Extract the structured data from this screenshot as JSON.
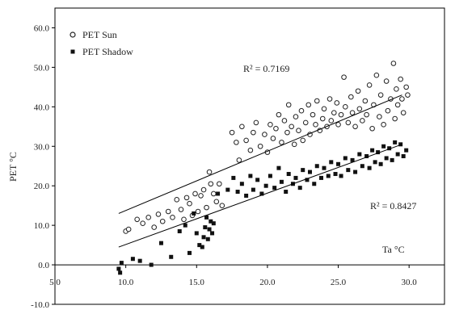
{
  "chart_data": {
    "type": "scatter",
    "title": "",
    "ylabel": "PET   °C",
    "xlabel": "Ta  °C",
    "xlim": [
      5,
      32.5
    ],
    "ylim": [
      -10,
      65
    ],
    "x_ticks": [
      5,
      10,
      15,
      20,
      25,
      30
    ],
    "x_tick_labels": [
      "5.0",
      "10.0",
      "15.0",
      "20.0",
      "25.0",
      "30.0"
    ],
    "y_ticks": [
      -10,
      0,
      10,
      20,
      30,
      40,
      50,
      60
    ],
    "y_tick_labels": [
      "-10.0",
      "0.0",
      "10.0",
      "20.0",
      "30.0",
      "40.0",
      "50.0",
      "60.0"
    ],
    "legend_position": "top-left",
    "grid": false,
    "series": [
      {
        "name": "PET Sun",
        "marker": "open-circle",
        "color": "#222222",
        "r2_label": "R² = 0.7169",
        "regression": {
          "x0": 9.5,
          "y0": 13.0,
          "x1": 29.5,
          "y1": 43.0
        },
        "points": [
          [
            10.0,
            8.5
          ],
          [
            10.2,
            9.0
          ],
          [
            10.8,
            11.5
          ],
          [
            11.2,
            10.5
          ],
          [
            11.6,
            12.0
          ],
          [
            12.0,
            9.5
          ],
          [
            12.3,
            12.8
          ],
          [
            12.6,
            11.0
          ],
          [
            13.0,
            13.5
          ],
          [
            13.3,
            12.0
          ],
          [
            13.6,
            16.5
          ],
          [
            13.9,
            14.0
          ],
          [
            14.1,
            11.5
          ],
          [
            14.3,
            17.0
          ],
          [
            14.5,
            15.5
          ],
          [
            14.7,
            12.5
          ],
          [
            14.9,
            18.0
          ],
          [
            15.1,
            13.5
          ],
          [
            15.3,
            17.5
          ],
          [
            15.5,
            19.0
          ],
          [
            15.7,
            14.5
          ],
          [
            15.9,
            23.5
          ],
          [
            16.0,
            20.5
          ],
          [
            16.2,
            18.0
          ],
          [
            16.4,
            16.0
          ],
          [
            16.6,
            20.5
          ],
          [
            16.8,
            15.0
          ],
          [
            17.5,
            33.5
          ],
          [
            17.8,
            31.0
          ],
          [
            18.0,
            26.5
          ],
          [
            18.2,
            35.0
          ],
          [
            18.5,
            31.5
          ],
          [
            18.8,
            29.0
          ],
          [
            19.0,
            33.5
          ],
          [
            19.2,
            36.0
          ],
          [
            19.5,
            30.0
          ],
          [
            19.8,
            33.0
          ],
          [
            20.0,
            28.5
          ],
          [
            20.2,
            35.5
          ],
          [
            20.4,
            32.0
          ],
          [
            20.6,
            34.5
          ],
          [
            20.8,
            38.0
          ],
          [
            21.0,
            31.0
          ],
          [
            21.2,
            36.5
          ],
          [
            21.4,
            33.5
          ],
          [
            21.5,
            40.5
          ],
          [
            21.7,
            35.0
          ],
          [
            21.9,
            30.5
          ],
          [
            22.0,
            37.5
          ],
          [
            22.2,
            34.0
          ],
          [
            22.4,
            39.0
          ],
          [
            22.5,
            31.5
          ],
          [
            22.7,
            36.0
          ],
          [
            22.9,
            40.5
          ],
          [
            23.0,
            33.0
          ],
          [
            23.2,
            38.0
          ],
          [
            23.4,
            35.5
          ],
          [
            23.5,
            41.5
          ],
          [
            23.7,
            34.0
          ],
          [
            23.9,
            37.0
          ],
          [
            24.0,
            39.5
          ],
          [
            24.2,
            35.0
          ],
          [
            24.4,
            42.0
          ],
          [
            24.5,
            36.5
          ],
          [
            24.7,
            38.5
          ],
          [
            24.9,
            41.0
          ],
          [
            25.0,
            35.5
          ],
          [
            25.2,
            38.0
          ],
          [
            25.4,
            47.5
          ],
          [
            25.5,
            40.0
          ],
          [
            25.7,
            36.0
          ],
          [
            25.9,
            42.5
          ],
          [
            26.0,
            38.5
          ],
          [
            26.2,
            35.0
          ],
          [
            26.4,
            44.0
          ],
          [
            26.5,
            39.5
          ],
          [
            26.7,
            36.5
          ],
          [
            26.9,
            41.5
          ],
          [
            27.0,
            38.0
          ],
          [
            27.2,
            45.5
          ],
          [
            27.4,
            34.5
          ],
          [
            27.5,
            40.5
          ],
          [
            27.7,
            48.0
          ],
          [
            27.9,
            37.5
          ],
          [
            28.0,
            43.0
          ],
          [
            28.2,
            35.5
          ],
          [
            28.4,
            46.5
          ],
          [
            28.5,
            39.0
          ],
          [
            28.7,
            42.0
          ],
          [
            28.9,
            51.0
          ],
          [
            29.0,
            37.0
          ],
          [
            29.1,
            44.5
          ],
          [
            29.2,
            40.5
          ],
          [
            29.4,
            47.0
          ],
          [
            29.5,
            42.0
          ],
          [
            29.6,
            38.5
          ],
          [
            29.8,
            45.0
          ],
          [
            29.9,
            43.0
          ]
        ]
      },
      {
        "name": "PET Shadow",
        "marker": "filled-square",
        "color": "#111111",
        "r2_label": "R² = 0.8427",
        "regression": {
          "x0": 9.5,
          "y0": 4.5,
          "x1": 29.5,
          "y1": 30.5
        },
        "points": [
          [
            9.5,
            -1.0
          ],
          [
            9.6,
            -2.0
          ],
          [
            9.7,
            0.5
          ],
          [
            10.5,
            1.5
          ],
          [
            11.0,
            1.0
          ],
          [
            11.8,
            0.0
          ],
          [
            12.5,
            5.5
          ],
          [
            13.2,
            2.0
          ],
          [
            13.8,
            8.5
          ],
          [
            14.2,
            10.0
          ],
          [
            14.5,
            3.0
          ],
          [
            14.8,
            13.0
          ],
          [
            15.0,
            8.0
          ],
          [
            15.2,
            5.0
          ],
          [
            15.4,
            4.5
          ],
          [
            15.5,
            7.0
          ],
          [
            15.6,
            9.5
          ],
          [
            15.7,
            12.0
          ],
          [
            15.8,
            6.5
          ],
          [
            15.9,
            9.0
          ],
          [
            16.0,
            11.0
          ],
          [
            16.1,
            8.0
          ],
          [
            16.2,
            10.5
          ],
          [
            16.5,
            18.0
          ],
          [
            17.2,
            19.0
          ],
          [
            17.6,
            22.0
          ],
          [
            17.9,
            18.5
          ],
          [
            18.2,
            20.5
          ],
          [
            18.5,
            17.5
          ],
          [
            18.8,
            22.5
          ],
          [
            19.0,
            19.0
          ],
          [
            19.3,
            21.5
          ],
          [
            19.6,
            18.0
          ],
          [
            19.9,
            20.0
          ],
          [
            20.2,
            22.5
          ],
          [
            20.5,
            19.5
          ],
          [
            20.8,
            24.5
          ],
          [
            21.0,
            21.0
          ],
          [
            21.3,
            18.5
          ],
          [
            21.5,
            23.0
          ],
          [
            21.8,
            20.5
          ],
          [
            22.0,
            22.0
          ],
          [
            22.3,
            19.5
          ],
          [
            22.5,
            24.0
          ],
          [
            22.8,
            21.5
          ],
          [
            23.0,
            23.5
          ],
          [
            23.3,
            20.5
          ],
          [
            23.5,
            25.0
          ],
          [
            23.8,
            22.0
          ],
          [
            24.0,
            24.5
          ],
          [
            24.3,
            22.5
          ],
          [
            24.5,
            26.0
          ],
          [
            24.8,
            23.0
          ],
          [
            25.0,
            25.5
          ],
          [
            25.2,
            22.5
          ],
          [
            25.5,
            27.0
          ],
          [
            25.7,
            24.0
          ],
          [
            26.0,
            26.5
          ],
          [
            26.2,
            23.5
          ],
          [
            26.5,
            28.0
          ],
          [
            26.7,
            25.0
          ],
          [
            27.0,
            27.5
          ],
          [
            27.2,
            24.5
          ],
          [
            27.4,
            29.0
          ],
          [
            27.6,
            26.0
          ],
          [
            27.8,
            28.5
          ],
          [
            28.0,
            25.5
          ],
          [
            28.2,
            30.0
          ],
          [
            28.4,
            27.0
          ],
          [
            28.6,
            29.5
          ],
          [
            28.8,
            26.5
          ],
          [
            29.0,
            31.0
          ],
          [
            29.2,
            28.0
          ],
          [
            29.4,
            30.5
          ],
          [
            29.6,
            27.5
          ],
          [
            29.8,
            29.0
          ]
        ]
      }
    ]
  }
}
